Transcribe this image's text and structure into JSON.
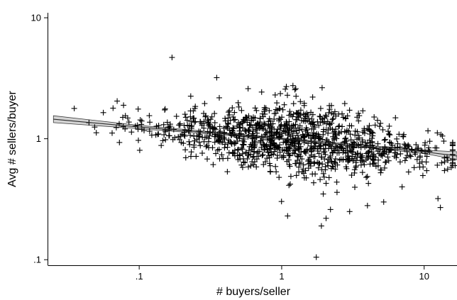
{
  "chart_data": {
    "type": "scatter",
    "title": "",
    "xlabel": "# buyers/seller",
    "ylabel": "Avg # sellers/buyer",
    "x_scale": "log",
    "y_scale": "log",
    "xlim": [
      0.023,
      17
    ],
    "ylim": [
      0.09,
      11
    ],
    "x_ticks": [
      0.1,
      1,
      10
    ],
    "x_tick_labels": [
      ".1",
      "1",
      "10"
    ],
    "y_ticks": [
      0.1,
      1,
      10
    ],
    "y_tick_labels": [
      ".1",
      "1",
      "10"
    ],
    "grid": false,
    "legend": "none",
    "point_marker": "plus",
    "point_color": "#000000",
    "fit_color": "#2a2a2a",
    "band_color": "#d4d4d4",
    "fit": {
      "x": [
        0.025,
        0.1,
        1,
        10,
        17
      ],
      "y": [
        1.45,
        1.25,
        1.0,
        0.78,
        0.72
      ],
      "lower": [
        1.36,
        1.21,
        0.985,
        0.755,
        0.67
      ],
      "upper": [
        1.55,
        1.29,
        1.015,
        0.805,
        0.78
      ]
    },
    "point_count": 1200,
    "points": [
      [
        0.035,
        1.78
      ],
      [
        0.05,
        1.12
      ],
      [
        0.16,
        1.25
      ],
      [
        0.17,
        4.7
      ],
      [
        0.23,
        2.25
      ],
      [
        0.3,
        0.68
      ],
      [
        0.35,
        3.2
      ],
      [
        0.9,
        2.3
      ],
      [
        1.1,
        0.23
      ],
      [
        1.2,
        2.75
      ],
      [
        1.75,
        0.105
      ],
      [
        1.9,
        0.19
      ],
      [
        2.05,
        0.22
      ],
      [
        2.2,
        0.26
      ],
      [
        3.0,
        0.25
      ],
      [
        4.0,
        0.28
      ],
      [
        5.2,
        0.3
      ],
      [
        7.0,
        0.4
      ],
      [
        12.5,
        0.32
      ],
      [
        13,
        0.27
      ],
      [
        15.5,
        0.58
      ],
      [
        16.5,
        0.6
      ],
      [
        0.07,
        2.05
      ],
      [
        0.08,
        1.55
      ],
      [
        0.45,
        1.8
      ]
    ]
  }
}
